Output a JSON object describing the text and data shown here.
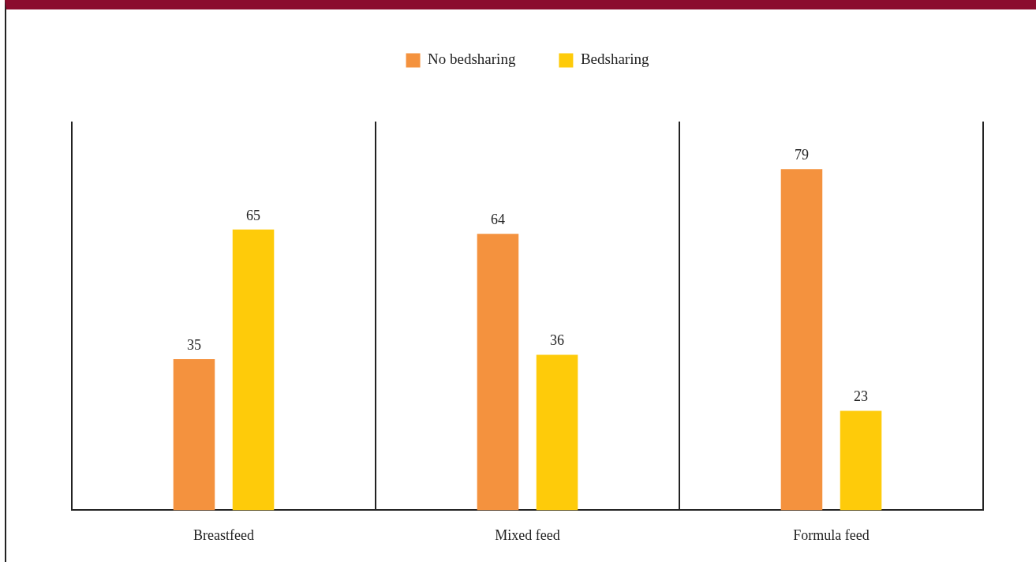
{
  "chart_data": {
    "type": "bar",
    "categories": [
      "Breastfeed",
      "Mixed feed",
      "Formula feed"
    ],
    "series": [
      {
        "name": "No bedsharing",
        "color": "#f4923e",
        "values": [
          35,
          64,
          79
        ]
      },
      {
        "name": "Bedsharing",
        "color": "#fecb0a",
        "values": [
          65,
          36,
          23
        ]
      }
    ],
    "data_labels": true,
    "legend": "top",
    "grid": "x"
  }
}
